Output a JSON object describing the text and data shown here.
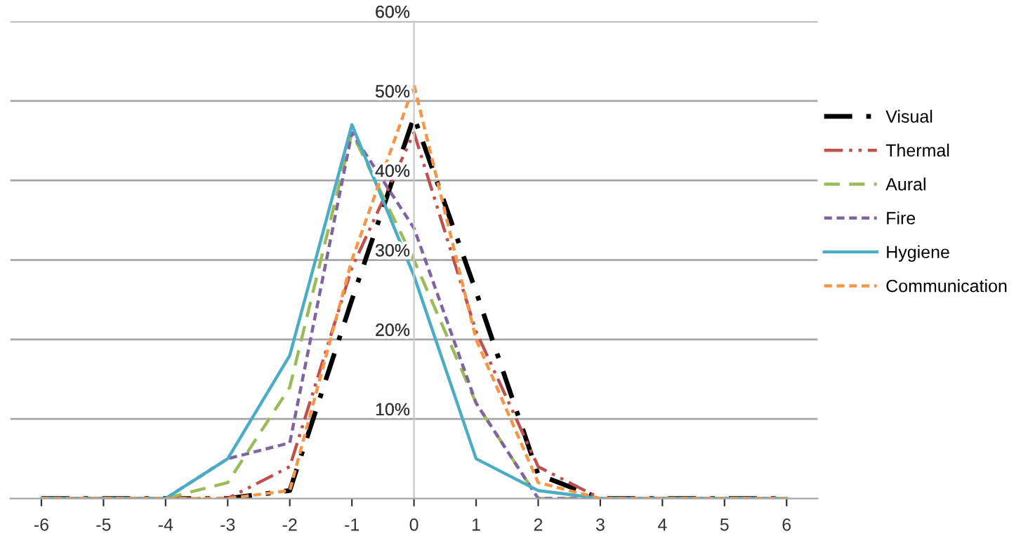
{
  "chart_data": {
    "type": "line",
    "x": [
      -6,
      -5,
      -4,
      -3,
      -2,
      -1,
      0,
      1,
      2,
      3,
      4,
      5,
      6
    ],
    "xlim": [
      -6.5,
      6.5
    ],
    "xticks": [
      -6,
      -5,
      -4,
      -3,
      -2,
      -1,
      0,
      1,
      2,
      3,
      4,
      5,
      6
    ],
    "ylim": [
      0,
      60
    ],
    "yticks": [
      {
        "value": 10,
        "label": "10%"
      },
      {
        "value": 20,
        "label": "20%"
      },
      {
        "value": 30,
        "label": "30%"
      },
      {
        "value": 40,
        "label": "40%"
      },
      {
        "value": 50,
        "label": "50%"
      },
      {
        "value": 60,
        "label": "60%"
      }
    ],
    "grid": "y",
    "legend": "right",
    "marker": "none",
    "series": [
      {
        "name": "Visual",
        "color": "#000000",
        "line_style": "dashdot",
        "values": [
          0,
          0,
          0,
          0,
          1,
          25,
          48,
          26,
          3,
          0,
          0,
          0,
          0
        ]
      },
      {
        "name": "Thermal",
        "color": "#c0504d",
        "line_style": "dashdotdot",
        "values": [
          0,
          0,
          0,
          0,
          4,
          29,
          46,
          21,
          4,
          0,
          0,
          0,
          0
        ]
      },
      {
        "name": "Aural",
        "color": "#9bbb59",
        "line_style": "dashed",
        "values": [
          0,
          0,
          0,
          2,
          14,
          46,
          30,
          12,
          0,
          0,
          0,
          0,
          0
        ]
      },
      {
        "name": "Fire",
        "color": "#8064a2",
        "line_style": "dotted",
        "values": [
          0,
          0,
          0,
          5,
          7,
          46,
          34,
          12,
          0,
          0,
          0,
          0,
          0
        ]
      },
      {
        "name": "Hygiene",
        "color": "#4bacc6",
        "line_style": "solid",
        "values": [
          0,
          0,
          0,
          5,
          18,
          47,
          28,
          5,
          1,
          0,
          0,
          0,
          0
        ]
      },
      {
        "name": "Communication",
        "color": "#f79646",
        "line_style": "dotted",
        "values": [
          0,
          0,
          0,
          0,
          1,
          30,
          52,
          20,
          2,
          0,
          0,
          0,
          0
        ]
      }
    ]
  }
}
